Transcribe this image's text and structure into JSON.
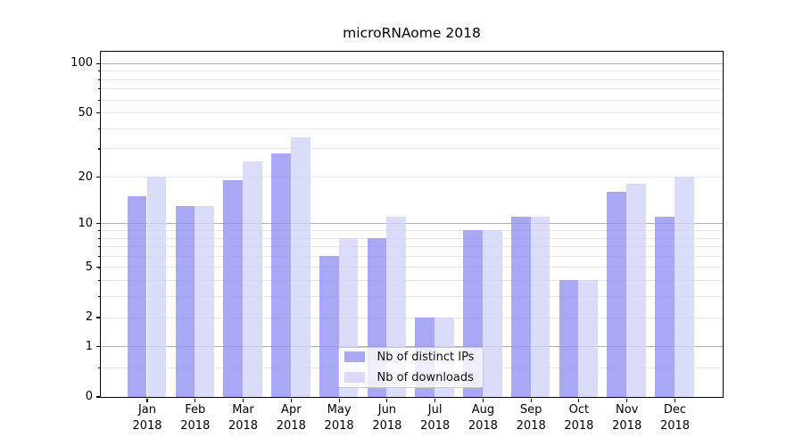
{
  "chart_data": {
    "type": "bar",
    "title": "microRNAome 2018",
    "categories": [
      "Jan",
      "Feb",
      "Mar",
      "Apr",
      "May",
      "Jun",
      "Jul",
      "Aug",
      "Sep",
      "Oct",
      "Nov",
      "Dec"
    ],
    "year_label": "2018",
    "series": [
      {
        "name": "Nb of distinct IPs",
        "color": "rgba(146,146,242,0.8)",
        "legend_color": "#a8a8f3",
        "values": [
          15,
          13,
          19,
          28,
          6,
          8,
          2,
          9,
          11,
          4,
          16,
          11
        ]
      },
      {
        "name": "Nb of downloads",
        "color": "rgba(210,210,249,0.8)",
        "legend_color": "#dbdbf9",
        "values": [
          20,
          13,
          25,
          35,
          8,
          11,
          2,
          9,
          11,
          4,
          18,
          20
        ]
      }
    ],
    "xlabel": "",
    "ylabel": "",
    "yscale": "log1p",
    "ylim": [
      0,
      117
    ],
    "ytick_values": [
      0,
      1,
      2,
      5,
      10,
      20,
      50,
      100
    ],
    "ytick_labels": [
      "0",
      "1",
      "2",
      "5",
      "10",
      "20",
      "50",
      "100"
    ],
    "major_grid_values": [
      1,
      10,
      100
    ],
    "minor_grid_values": [
      0.5,
      2,
      3,
      4,
      5,
      6,
      7,
      8,
      9,
      20,
      30,
      40,
      50,
      60,
      70,
      80,
      90
    ],
    "grid": "both",
    "legend_position": "lower center",
    "colors": {
      "major_grid": "#b2b2b2",
      "minor_grid": "#e8e8e8",
      "spine": "#000000",
      "text": "#000000"
    }
  }
}
